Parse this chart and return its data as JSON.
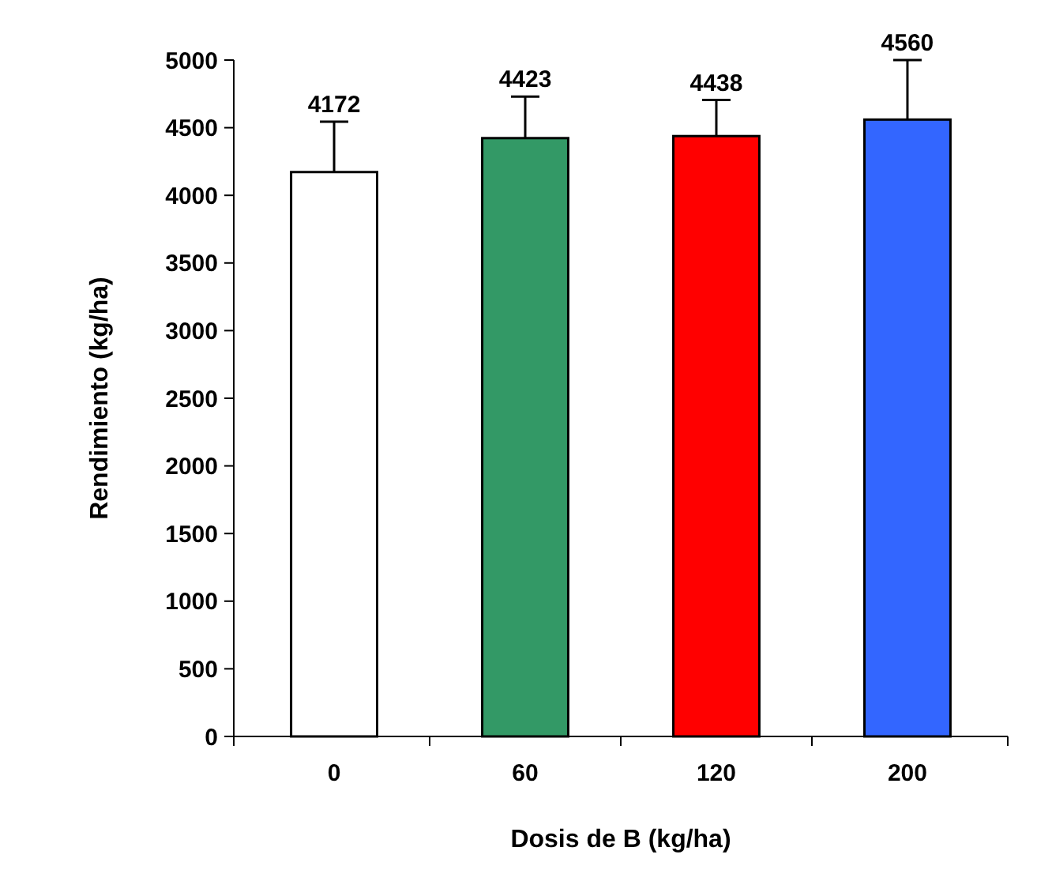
{
  "chart_data": {
    "type": "bar",
    "xlabel": "Dosis de B (kg/ha)",
    "ylabel": "Rendimiento (kg/ha)",
    "categories": [
      "0",
      "60",
      "120",
      "200"
    ],
    "values": [
      4172,
      4423,
      4438,
      4560
    ],
    "colors": [
      "#ffffff",
      "#339966",
      "#ff0000",
      "#3366ff"
    ],
    "errors": [
      [
        4172,
        4545
      ],
      [
        4423,
        4730
      ],
      [
        4438,
        4705
      ],
      [
        4560,
        5000
      ]
    ],
    "data_labels": true,
    "ylim": [
      0,
      5000
    ],
    "yticks": [
      0,
      500,
      1000,
      1500,
      2000,
      2500,
      3000,
      3500,
      4000,
      4500,
      5000
    ]
  }
}
